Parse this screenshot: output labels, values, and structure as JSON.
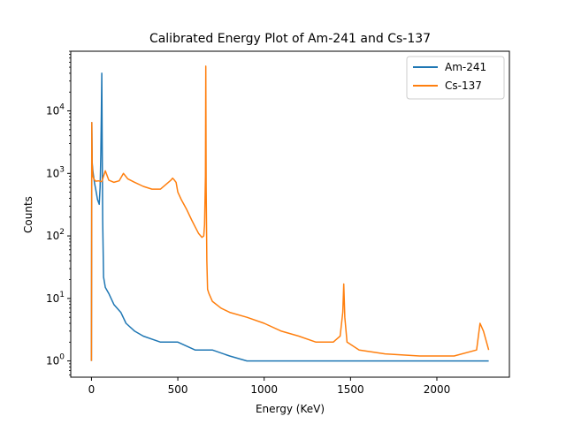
{
  "chart_data": {
    "type": "line",
    "title": "Calibrated Energy Plot of Am-241 and Cs-137",
    "xlabel": "Energy (KeV)",
    "ylabel": "Counts",
    "xlim": [
      -120,
      2420
    ],
    "ylim": [
      0.55,
      90000
    ],
    "yscale": "log",
    "x_ticks": [
      0,
      500,
      1000,
      1500,
      2000
    ],
    "x_tick_labels": [
      "0",
      "500",
      "1000",
      "1500",
      "2000"
    ],
    "y_ticks": [
      1,
      10,
      100,
      1000,
      10000
    ],
    "y_tick_labels": [
      "10^0",
      "10^1",
      "10^2",
      "10^3",
      "10^4"
    ],
    "grid": false,
    "legend": "top-right",
    "colors": {
      "Am-241": "#1f77b4",
      "Cs-137": "#ff7f0e"
    },
    "series": [
      {
        "name": "Am-241",
        "x": [
          0,
          2,
          4,
          8,
          12,
          18,
          25,
          35,
          45,
          50,
          54,
          57,
          59.5,
          62,
          65,
          70,
          80,
          100,
          130,
          170,
          200,
          250,
          300,
          400,
          500,
          600,
          700,
          800,
          900,
          1000,
          1200,
          1500,
          2000,
          2300
        ],
        "y": [
          1,
          6500,
          1500,
          1100,
          900,
          700,
          550,
          380,
          320,
          600,
          2000,
          9000,
          40000,
          4000,
          180,
          22,
          15,
          12,
          8,
          6,
          4,
          3,
          2.5,
          2,
          2,
          1.5,
          1.5,
          1.2,
          1,
          1,
          1,
          1,
          1,
          1
        ]
      },
      {
        "name": "Cs-137",
        "x": [
          0,
          2,
          4,
          8,
          15,
          25,
          40,
          60,
          80,
          100,
          130,
          160,
          185,
          210,
          250,
          300,
          350,
          400,
          440,
          460,
          470,
          480,
          490,
          500,
          520,
          550,
          580,
          600,
          620,
          640,
          650,
          655,
          660,
          662,
          664,
          668,
          672,
          680,
          700,
          750,
          800,
          900,
          1000,
          1100,
          1200,
          1300,
          1400,
          1440,
          1455,
          1461,
          1467,
          1480,
          1550,
          1700,
          1900,
          2100,
          2230,
          2250,
          2270,
          2300
        ],
        "y": [
          1,
          6500,
          1400,
          900,
          800,
          750,
          760,
          740,
          1100,
          780,
          720,
          760,
          1000,
          820,
          720,
          620,
          560,
          560,
          700,
          780,
          840,
          780,
          720,
          500,
          380,
          270,
          180,
          140,
          110,
          95,
          100,
          150,
          900,
          52000,
          600,
          40,
          14,
          12,
          9,
          7,
          6,
          5,
          4,
          3,
          2.5,
          2,
          2,
          2.5,
          6,
          17,
          5,
          2,
          1.5,
          1.3,
          1.2,
          1.2,
          1.5,
          4,
          3,
          1.5
        ]
      }
    ]
  }
}
